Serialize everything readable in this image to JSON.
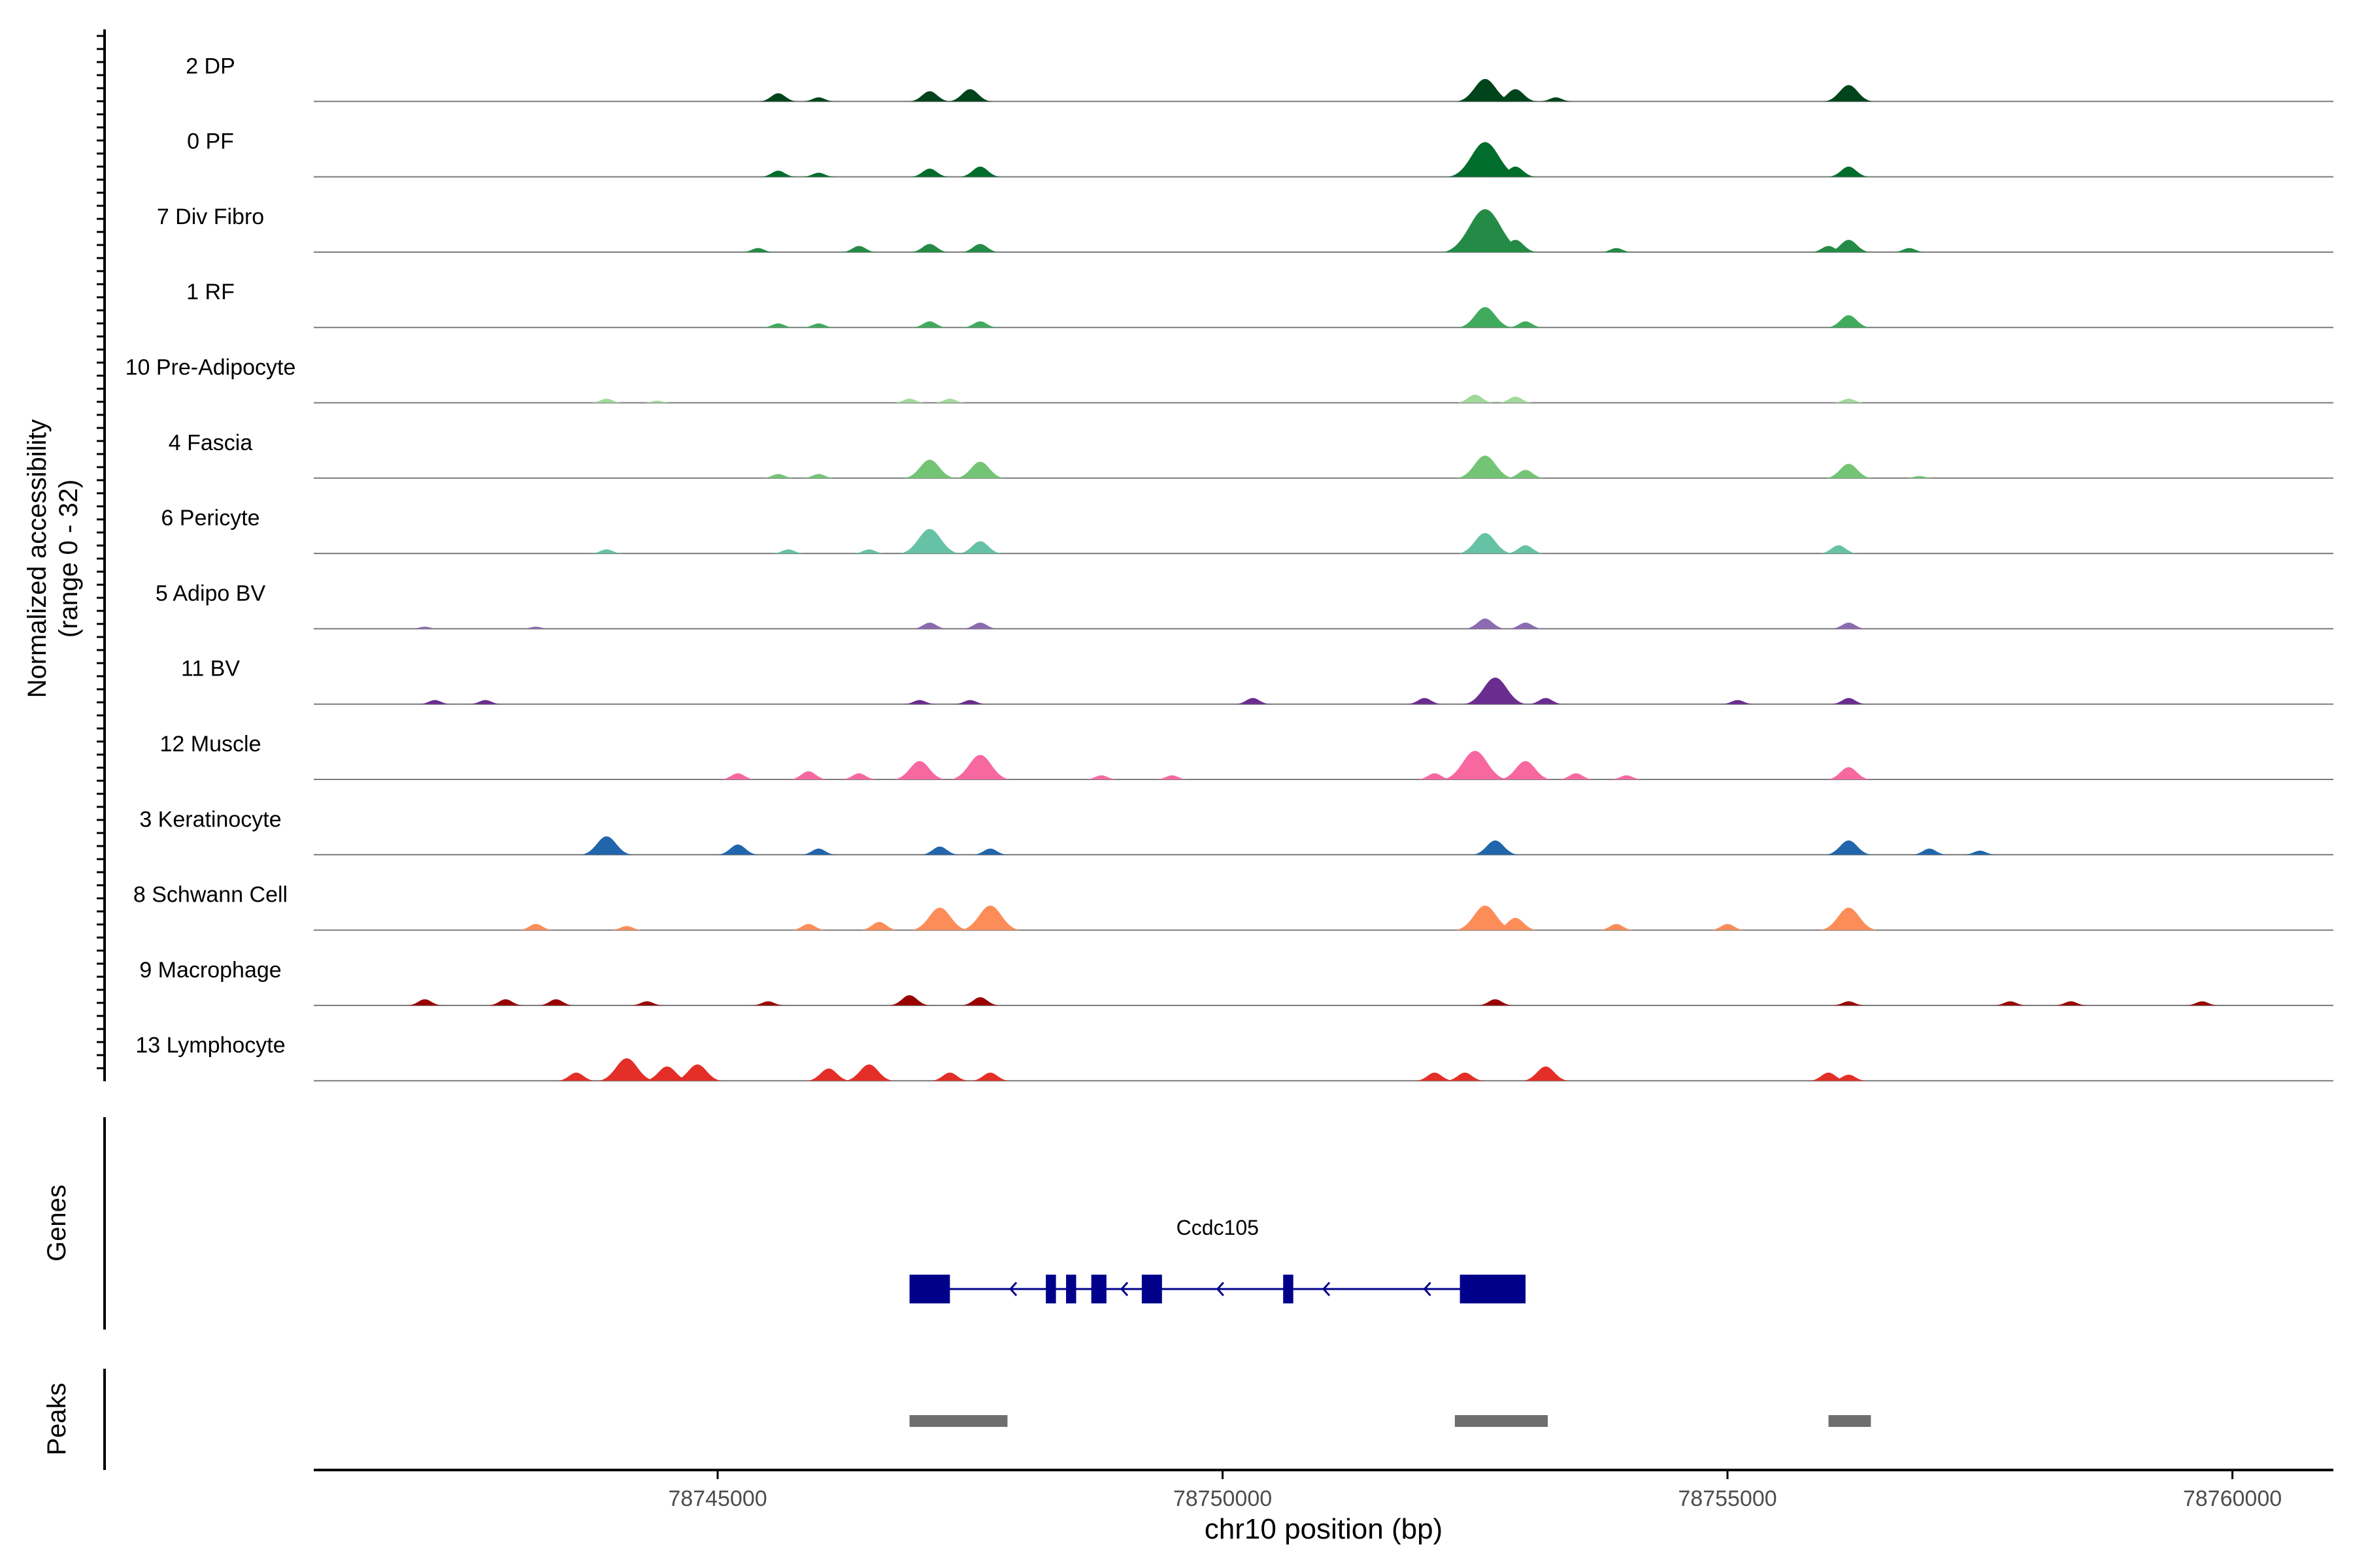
{
  "chart_data": {
    "type": "area",
    "title": "",
    "xlabel": "chr10 position (bp)",
    "xlim": [
      78741000,
      78761000
    ],
    "x_ticks": [
      78745000,
      78750000,
      78755000,
      78760000
    ],
    "x_tick_labels": [
      "78745000",
      "78750000",
      "78755000",
      "78760000"
    ],
    "coverage_ylabel_line1": "Normalized accessibility",
    "coverage_ylabel_line2": "(range 0 - 32)",
    "ylim": [
      0,
      32
    ],
    "genes_label": "Genes",
    "peaks_label": "Peaks",
    "tracks": [
      {
        "name": "2 DP",
        "color": "#00441b",
        "peaks": [
          [
            78745600,
            4
          ],
          [
            78746000,
            2
          ],
          [
            78747100,
            5
          ],
          [
            78747500,
            6
          ],
          [
            78752600,
            11
          ],
          [
            78752900,
            6
          ],
          [
            78753300,
            2
          ],
          [
            78756200,
            8
          ]
        ]
      },
      {
        "name": "0 PF",
        "color": "#006d2c",
        "peaks": [
          [
            78745600,
            3
          ],
          [
            78746000,
            2
          ],
          [
            78747100,
            4
          ],
          [
            78747600,
            5
          ],
          [
            78752600,
            17
          ],
          [
            78752900,
            5
          ],
          [
            78756200,
            5
          ]
        ]
      },
      {
        "name": "7 Div Fibro",
        "color": "#238b45",
        "peaks": [
          [
            78745400,
            2
          ],
          [
            78746400,
            3
          ],
          [
            78747100,
            4
          ],
          [
            78747600,
            4
          ],
          [
            78752600,
            21
          ],
          [
            78752900,
            6
          ],
          [
            78753900,
            2
          ],
          [
            78756000,
            3
          ],
          [
            78756200,
            6
          ],
          [
            78756800,
            2
          ]
        ]
      },
      {
        "name": "1 RF",
        "color": "#41ab5d",
        "peaks": [
          [
            78745600,
            2
          ],
          [
            78746000,
            2
          ],
          [
            78747100,
            3
          ],
          [
            78747600,
            3
          ],
          [
            78752600,
            10
          ],
          [
            78753000,
            3
          ],
          [
            78756200,
            6
          ]
        ]
      },
      {
        "name": "10 Pre-Adipocyte",
        "color": "#a1d99b",
        "peaks": [
          [
            78743900,
            2
          ],
          [
            78744400,
            1
          ],
          [
            78746900,
            2
          ],
          [
            78747300,
            2
          ],
          [
            78752500,
            4
          ],
          [
            78752900,
            3
          ],
          [
            78756200,
            2
          ]
        ]
      },
      {
        "name": "4 Fascia",
        "color": "#74c476",
        "peaks": [
          [
            78745600,
            2
          ],
          [
            78746000,
            2
          ],
          [
            78747100,
            9
          ],
          [
            78747600,
            8
          ],
          [
            78752600,
            11
          ],
          [
            78753000,
            4
          ],
          [
            78756200,
            7
          ],
          [
            78756900,
            1
          ]
        ]
      },
      {
        "name": "6 Pericyte",
        "color": "#66c2a4",
        "peaks": [
          [
            78743900,
            2
          ],
          [
            78745700,
            2
          ],
          [
            78746500,
            2
          ],
          [
            78747100,
            12
          ],
          [
            78747600,
            6
          ],
          [
            78752600,
            10
          ],
          [
            78753000,
            4
          ],
          [
            78756100,
            4
          ]
        ]
      },
      {
        "name": "5 Adipo BV",
        "color": "#8c6bb1",
        "peaks": [
          [
            78742100,
            1
          ],
          [
            78743200,
            1
          ],
          [
            78747100,
            3
          ],
          [
            78747600,
            3
          ],
          [
            78752600,
            5
          ],
          [
            78753000,
            3
          ],
          [
            78756200,
            3
          ]
        ]
      },
      {
        "name": "11 BV",
        "color": "#6a2c8e",
        "peaks": [
          [
            78742200,
            2
          ],
          [
            78742700,
            2
          ],
          [
            78747000,
            2
          ],
          [
            78747500,
            2
          ],
          [
            78750300,
            3
          ],
          [
            78752000,
            3
          ],
          [
            78752700,
            13
          ],
          [
            78753200,
            3
          ],
          [
            78755100,
            2
          ],
          [
            78756200,
            3
          ]
        ]
      },
      {
        "name": "12 Muscle",
        "color": "#f768a1",
        "peaks": [
          [
            78745200,
            3
          ],
          [
            78745900,
            4
          ],
          [
            78746400,
            3
          ],
          [
            78747000,
            9
          ],
          [
            78747600,
            12
          ],
          [
            78748800,
            2
          ],
          [
            78749500,
            2
          ],
          [
            78752100,
            3
          ],
          [
            78752500,
            14
          ],
          [
            78753000,
            9
          ],
          [
            78753500,
            3
          ],
          [
            78754000,
            2
          ],
          [
            78756200,
            6
          ]
        ]
      },
      {
        "name": "3 Keratinocyte",
        "color": "#2166ac",
        "peaks": [
          [
            78743900,
            9
          ],
          [
            78745200,
            5
          ],
          [
            78746000,
            3
          ],
          [
            78747200,
            4
          ],
          [
            78747700,
            3
          ],
          [
            78752700,
            7
          ],
          [
            78756200,
            7
          ],
          [
            78757000,
            3
          ],
          [
            78757500,
            2
          ]
        ]
      },
      {
        "name": "8 Schwann Cell",
        "color": "#fc8d59",
        "peaks": [
          [
            78743200,
            3
          ],
          [
            78744100,
            2
          ],
          [
            78745900,
            3
          ],
          [
            78746600,
            4
          ],
          [
            78747200,
            11
          ],
          [
            78747700,
            12
          ],
          [
            78752600,
            12
          ],
          [
            78752900,
            6
          ],
          [
            78753900,
            3
          ],
          [
            78755000,
            3
          ],
          [
            78756200,
            11
          ]
        ]
      },
      {
        "name": "9 Macrophage",
        "color": "#990000",
        "peaks": [
          [
            78742100,
            3
          ],
          [
            78742900,
            3
          ],
          [
            78743400,
            3
          ],
          [
            78744300,
            2
          ],
          [
            78745500,
            2
          ],
          [
            78746900,
            5
          ],
          [
            78747600,
            4
          ],
          [
            78752700,
            3
          ],
          [
            78756200,
            2
          ],
          [
            78757800,
            2
          ],
          [
            78758400,
            2
          ],
          [
            78759700,
            2
          ]
        ]
      },
      {
        "name": "13 Lymphocyte",
        "color": "#e32f27",
        "peaks": [
          [
            78743600,
            4
          ],
          [
            78744100,
            11
          ],
          [
            78744500,
            7
          ],
          [
            78744800,
            8
          ],
          [
            78746100,
            6
          ],
          [
            78746500,
            8
          ],
          [
            78747300,
            4
          ],
          [
            78747700,
            4
          ],
          [
            78752100,
            4
          ],
          [
            78752400,
            4
          ],
          [
            78753200,
            7
          ],
          [
            78756000,
            4
          ],
          [
            78756200,
            3
          ]
        ]
      }
    ],
    "gene": {
      "name": "Ccdc105",
      "strand": "-",
      "start": 78746900,
      "end": 78753000,
      "color": "#00008b",
      "exons": [
        [
          78746900,
          78747300
        ],
        [
          78748250,
          78748350
        ],
        [
          78748450,
          78748550
        ],
        [
          78748700,
          78748850
        ],
        [
          78749200,
          78749400
        ],
        [
          78750600,
          78750700
        ],
        [
          78752350,
          78753000
        ]
      ],
      "arrows": [
        78747900,
        78749000,
        78749950,
        78751000,
        78752000
      ]
    },
    "peaks_track": {
      "color": "#6e6e6e",
      "regions": [
        [
          78746900,
          78747870
        ],
        [
          78752300,
          78753220
        ],
        [
          78756000,
          78756420
        ]
      ]
    }
  }
}
